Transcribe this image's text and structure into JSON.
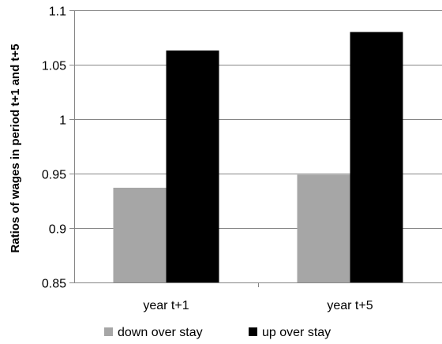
{
  "chart_data": {
    "type": "bar",
    "title": "",
    "xlabel": "",
    "ylabel": "Ratios of wages in period t+1 and t+5",
    "categories": [
      "year t+1",
      "year t+5"
    ],
    "series": [
      {
        "name": "down over stay",
        "values": [
          0.937,
          0.949
        ],
        "color": "#a6a6a6"
      },
      {
        "name": "up over stay",
        "values": [
          1.063,
          1.08
        ],
        "color": "#000000"
      }
    ],
    "ylim": [
      0.85,
      1.1
    ],
    "yticks": [
      0.85,
      0.9,
      0.95,
      1.0,
      1.05,
      1.1
    ],
    "ytick_labels": [
      "0.85",
      "0.9",
      "0.95",
      "1",
      "1.05",
      "1.1"
    ],
    "grid": true,
    "legend_position": "bottom"
  }
}
